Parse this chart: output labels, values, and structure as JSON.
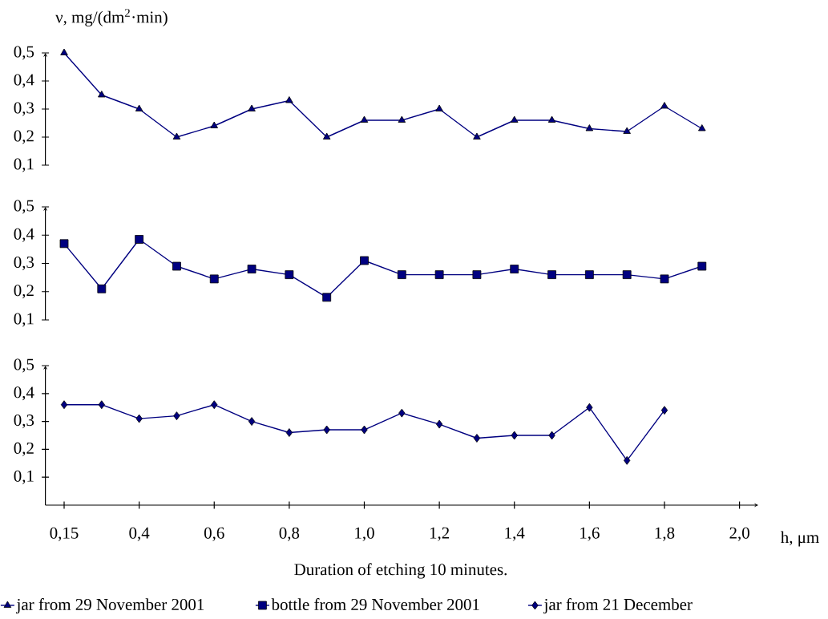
{
  "chart_data": [
    {
      "type": "line",
      "ylabel": "ν, mg/(dm$^{2}$·min)",
      "categories": [
        null,
        null,
        null,
        null,
        null,
        null,
        null,
        null,
        null,
        null,
        null,
        null,
        null,
        null,
        null,
        null,
        null,
        null,
        null
      ],
      "tick_labels": "y",
      "marker": "triangle",
      "legend": "bottom",
      "ylim": [
        0.1,
        0.5
      ],
      "yticks": [
        {
          "value": 0.1,
          "label": "0,1"
        },
        {
          "value": 0.2,
          "label": "0,2"
        },
        {
          "value": 0.3,
          "label": "0,3"
        },
        {
          "value": 0.4,
          "label": "0,4"
        },
        {
          "value": 0.5,
          "label": "0,5"
        }
      ],
      "series": [
        {
          "name": "jar from 29 November 2001",
          "color": "#000080",
          "values": [
            0.5,
            0.35,
            0.3,
            0.2,
            0.24,
            0.3,
            0.33,
            0.2,
            0.26,
            0.26,
            0.3,
            0.2,
            0.26,
            0.26,
            0.23,
            0.22,
            0.31,
            0.23,
            null
          ]
        }
      ]
    },
    {
      "type": "line",
      "categories": [
        null,
        null,
        null,
        null,
        null,
        null,
        null,
        null,
        null,
        null,
        null,
        null,
        null,
        null,
        null,
        null,
        null,
        null,
        null
      ],
      "tick_labels": "y",
      "marker": "square",
      "legend": "bottom",
      "ylim": [
        0.1,
        0.5
      ],
      "yticks": [
        {
          "value": 0.1,
          "label": "0,1"
        },
        {
          "value": 0.2,
          "label": "0,2"
        },
        {
          "value": 0.3,
          "label": "0,3"
        },
        {
          "value": 0.4,
          "label": "0,4"
        },
        {
          "value": 0.5,
          "label": "0,5"
        }
      ],
      "series": [
        {
          "name": "bottle from 29 November 2001",
          "color": "#000080",
          "values": [
            0.37,
            0.21,
            0.385,
            0.29,
            0.245,
            0.28,
            0.26,
            0.18,
            0.31,
            0.26,
            0.26,
            0.26,
            0.28,
            0.26,
            0.26,
            0.26,
            0.245,
            0.29,
            null
          ]
        }
      ]
    },
    {
      "type": "line",
      "categories": [
        "0,15",
        null,
        "0,4",
        null,
        "0,6",
        null,
        "0,8",
        null,
        "1,0",
        null,
        "1,2",
        null,
        "1,4",
        null,
        "1,6",
        null,
        "1,8",
        null,
        "2,0"
      ],
      "xlabel": "h, μm",
      "annotations": [
        "Duration of etching 10 minutes."
      ],
      "marker": "diamond",
      "legend": "bottom",
      "ylim": [
        0,
        0.5
      ],
      "yticks": [
        {
          "value": 0.1,
          "label": "0,1"
        },
        {
          "value": 0.2,
          "label": "0,2"
        },
        {
          "value": 0.3,
          "label": "0,3"
        },
        {
          "value": 0.4,
          "label": "0,4"
        },
        {
          "value": 0.5,
          "label": "0,5"
        }
      ],
      "series": [
        {
          "name": "jar from 21 December",
          "color": "#000080",
          "values": [
            0.36,
            0.36,
            0.31,
            0.32,
            0.36,
            0.3,
            0.26,
            0.27,
            0.27,
            0.33,
            0.29,
            0.24,
            0.25,
            0.25,
            0.35,
            0.16,
            0.34,
            null,
            null
          ]
        }
      ]
    }
  ]
}
